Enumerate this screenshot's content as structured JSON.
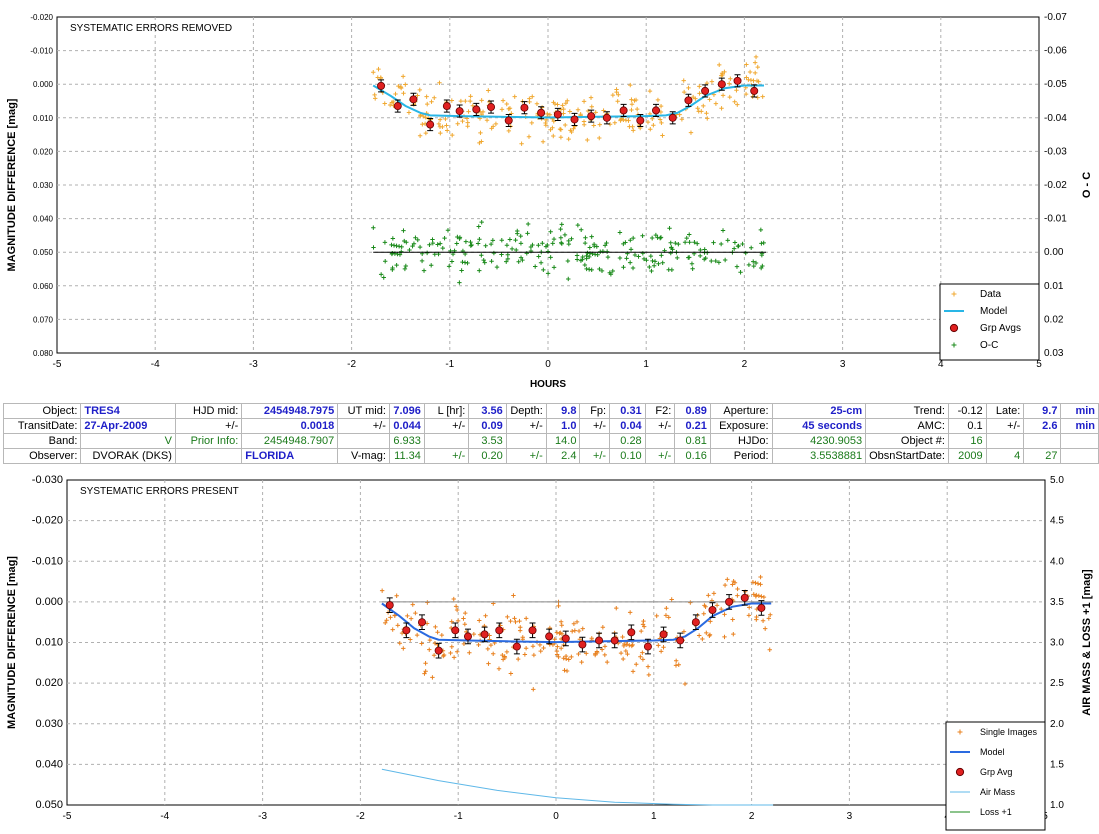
{
  "chart_data": [
    {
      "type": "scatter",
      "title": "SYSTEMATIC ERRORS REMOVED",
      "xlabel": "HOURS",
      "ylabel": "MAGNITUDE DIFFERENCE [mag]",
      "y2label": "O - C",
      "xlim": [
        -5,
        5
      ],
      "ylim": [
        0.08,
        -0.02
      ],
      "y2lim": [
        0.03,
        -0.07
      ],
      "xticks": [
        "-5",
        "-4",
        "-3",
        "-2",
        "-1",
        "0",
        "1",
        "2",
        "3",
        "4",
        "5"
      ],
      "yticks": [
        "-0.020",
        "-0.010",
        "0.000",
        "0.010",
        "0.020",
        "0.030",
        "0.040",
        "0.050",
        "0.060",
        "0.070",
        "0.080"
      ],
      "y2ticks": [
        "-0.07",
        "-0.06",
        "-0.05",
        "-0.04",
        "-0.03",
        "-0.02",
        "-0.01",
        "0.00",
        "0.01",
        "0.02",
        "0.03"
      ],
      "grid": true,
      "legend_position": "bottom-right",
      "series": [
        {
          "name": "Data",
          "kind": "scatter-plus",
          "color": "#f0a830",
          "x_range": [
            -1.78,
            2.22
          ],
          "center_model": "Model",
          "spread": 0.0045,
          "count": 260,
          "seed": 7
        },
        {
          "name": "Model",
          "kind": "line",
          "color": "#29b6e6",
          "x": [
            -1.78,
            -1.6,
            -1.45,
            -1.3,
            -1.2,
            -0.9,
            -0.5,
            0,
            0.5,
            1.0,
            1.2,
            1.32,
            1.45,
            1.6,
            1.8,
            2.0,
            2.2
          ],
          "y": [
            0.0004,
            0.0035,
            0.0065,
            0.0085,
            0.0093,
            0.0095,
            0.0097,
            0.0099,
            0.0097,
            0.0095,
            0.0093,
            0.0085,
            0.0065,
            0.0035,
            0.0012,
            0.0004,
            0.0004
          ]
        },
        {
          "name": "Grp Avgs",
          "kind": "points-err",
          "color": "#e02020",
          "x": [
            -1.7,
            -1.53,
            -1.37,
            -1.2,
            -1.03,
            -0.9,
            -0.73,
            -0.58,
            -0.4,
            -0.24,
            -0.07,
            0.1,
            0.27,
            0.44,
            0.6,
            0.77,
            0.94,
            1.1,
            1.27,
            1.43,
            1.6,
            1.77,
            1.93,
            2.1
          ],
          "y": [
            0.0005,
            0.0065,
            0.0045,
            0.012,
            0.0065,
            0.008,
            0.0075,
            0.0068,
            0.0108,
            0.007,
            0.0085,
            0.009,
            0.0105,
            0.0095,
            0.01,
            0.0078,
            0.0108,
            0.0078,
            0.01,
            0.0048,
            0.002,
            0.0,
            -0.001,
            0.002
          ],
          "err": 0.0018
        },
        {
          "name": "O-C",
          "kind": "scatter-plus",
          "color": "#1a8a1a",
          "x_range": [
            -1.78,
            2.22
          ],
          "center": 0.0,
          "axis": "right",
          "spread": 0.0045,
          "count": 260,
          "seed": 19
        },
        {
          "name": "zero",
          "kind": "hline",
          "color": "#000000",
          "y": 0.0,
          "axis": "right",
          "x_range": [
            -1.78,
            2.22
          ]
        }
      ]
    },
    {
      "type": "scatter",
      "title": "SYSTEMATIC ERRORS PRESENT",
      "ylabel": "MAGNITUDE DIFFERENCE [mag]",
      "y2label": "AIR MASS & LOSS +1 [mag]",
      "xlim": [
        -5,
        5
      ],
      "ylim": [
        0.05,
        -0.03
      ],
      "y2lim": [
        1.0,
        5.0
      ],
      "xticks": [
        "-5",
        "-4",
        "-3",
        "-2",
        "-1",
        "0",
        "1",
        "2",
        "3",
        "4",
        "5"
      ],
      "yticks": [
        "-0.030",
        "-0.020",
        "-0.010",
        "0.000",
        "0.010",
        "0.020",
        "0.030",
        "0.040",
        "0.050"
      ],
      "y2ticks": [
        "5.0",
        "4.5",
        "4.0",
        "3.5",
        "3.0",
        "2.5",
        "2.0",
        "1.5",
        "1.0"
      ],
      "grid": true,
      "legend_position": "bottom-right",
      "series": [
        {
          "name": "Single Images",
          "kind": "scatter-plus",
          "color": "#e8801e",
          "x_range": [
            -1.78,
            2.22
          ],
          "center_model": "Model",
          "spread": 0.0055,
          "count": 260,
          "seed": 31
        },
        {
          "name": "Model",
          "kind": "line",
          "color": "#2a6ae0",
          "x": [
            -1.78,
            -1.6,
            -1.45,
            -1.3,
            -1.2,
            -0.9,
            -0.5,
            0,
            0.5,
            1.0,
            1.2,
            1.32,
            1.45,
            1.6,
            1.8,
            2.0,
            2.2
          ],
          "y": [
            0.0004,
            0.0035,
            0.0065,
            0.0085,
            0.0093,
            0.0095,
            0.0097,
            0.0099,
            0.0097,
            0.0095,
            0.0093,
            0.0085,
            0.0065,
            0.0035,
            0.0012,
            0.0004,
            0.0004
          ]
        },
        {
          "name": "Loss +1 base",
          "kind": "hline",
          "color": "#888888",
          "y": 0.0,
          "x_range": [
            -1.78,
            2.22
          ]
        },
        {
          "name": "Grp Avg",
          "kind": "points-err",
          "color": "#e02020",
          "x": [
            -1.7,
            -1.53,
            -1.37,
            -1.2,
            -1.03,
            -0.9,
            -0.73,
            -0.58,
            -0.4,
            -0.24,
            -0.07,
            0.1,
            0.27,
            0.44,
            0.6,
            0.77,
            0.94,
            1.1,
            1.27,
            1.43,
            1.6,
            1.77,
            1.93,
            2.1
          ],
          "y": [
            0.0008,
            0.007,
            0.005,
            0.012,
            0.007,
            0.0085,
            0.008,
            0.007,
            0.011,
            0.007,
            0.0085,
            0.009,
            0.0105,
            0.0095,
            0.0095,
            0.0075,
            0.011,
            0.008,
            0.0095,
            0.005,
            0.002,
            0.0,
            -0.001,
            0.0015
          ],
          "err": 0.0018
        },
        {
          "name": "Air Mass",
          "kind": "line",
          "color": "#5fb8e8",
          "axis": "right",
          "x": [
            -1.78,
            -1.2,
            -0.6,
            0,
            0.6,
            1.2,
            1.6,
            2.22
          ],
          "y": [
            1.44,
            1.3,
            1.18,
            1.09,
            1.035,
            1.01,
            1.0,
            1.0
          ]
        },
        {
          "name": "Loss +1",
          "kind": "line",
          "color": "#1a8a1a",
          "axis": "right",
          "x": [],
          "y": []
        }
      ]
    }
  ],
  "table": {
    "rows": [
      [
        "Object:",
        "TRES4",
        "HJD mid:",
        "2454948.7975",
        "UT mid:",
        "7.096",
        "L [hr]:",
        "3.56",
        "Depth:",
        "9.8",
        "Fp:",
        "0.31",
        "F2:",
        "0.89",
        "Aperture:",
        "25-cm",
        "Trend:",
        "-0.12",
        "Late:",
        "9.7",
        "min"
      ],
      [
        "TransitDate:",
        "27-Apr-2009",
        "+/-",
        "0.0018",
        "+/-",
        "0.044",
        "+/-",
        "0.09",
        "+/-",
        "1.0",
        "+/-",
        "0.04",
        "+/-",
        "0.21",
        "Exposure:",
        "45 seconds",
        "AMC:",
        "0.1",
        "+/-",
        "2.6",
        "min"
      ],
      [
        "Band:",
        "V",
        "Prior Info:",
        "2454948.7907",
        "",
        "6.933",
        "",
        "3.53",
        "",
        "14.0",
        "",
        "0.28",
        "",
        "0.81",
        "HJDo:",
        "4230.9053",
        "Object #:",
        "16",
        "",
        "",
        ""
      ],
      [
        "Observer:",
        "DVORAK (DKS)",
        "",
        "FLORIDA",
        "V-mag:",
        "11.34",
        "+/-",
        "0.20",
        "+/-",
        "2.4",
        "+/-",
        "0.10",
        "+/-",
        "0.16",
        "Period:",
        "3.5538881",
        "ObsnStartDate:",
        "2009",
        "4",
        "27",
        ""
      ]
    ]
  }
}
